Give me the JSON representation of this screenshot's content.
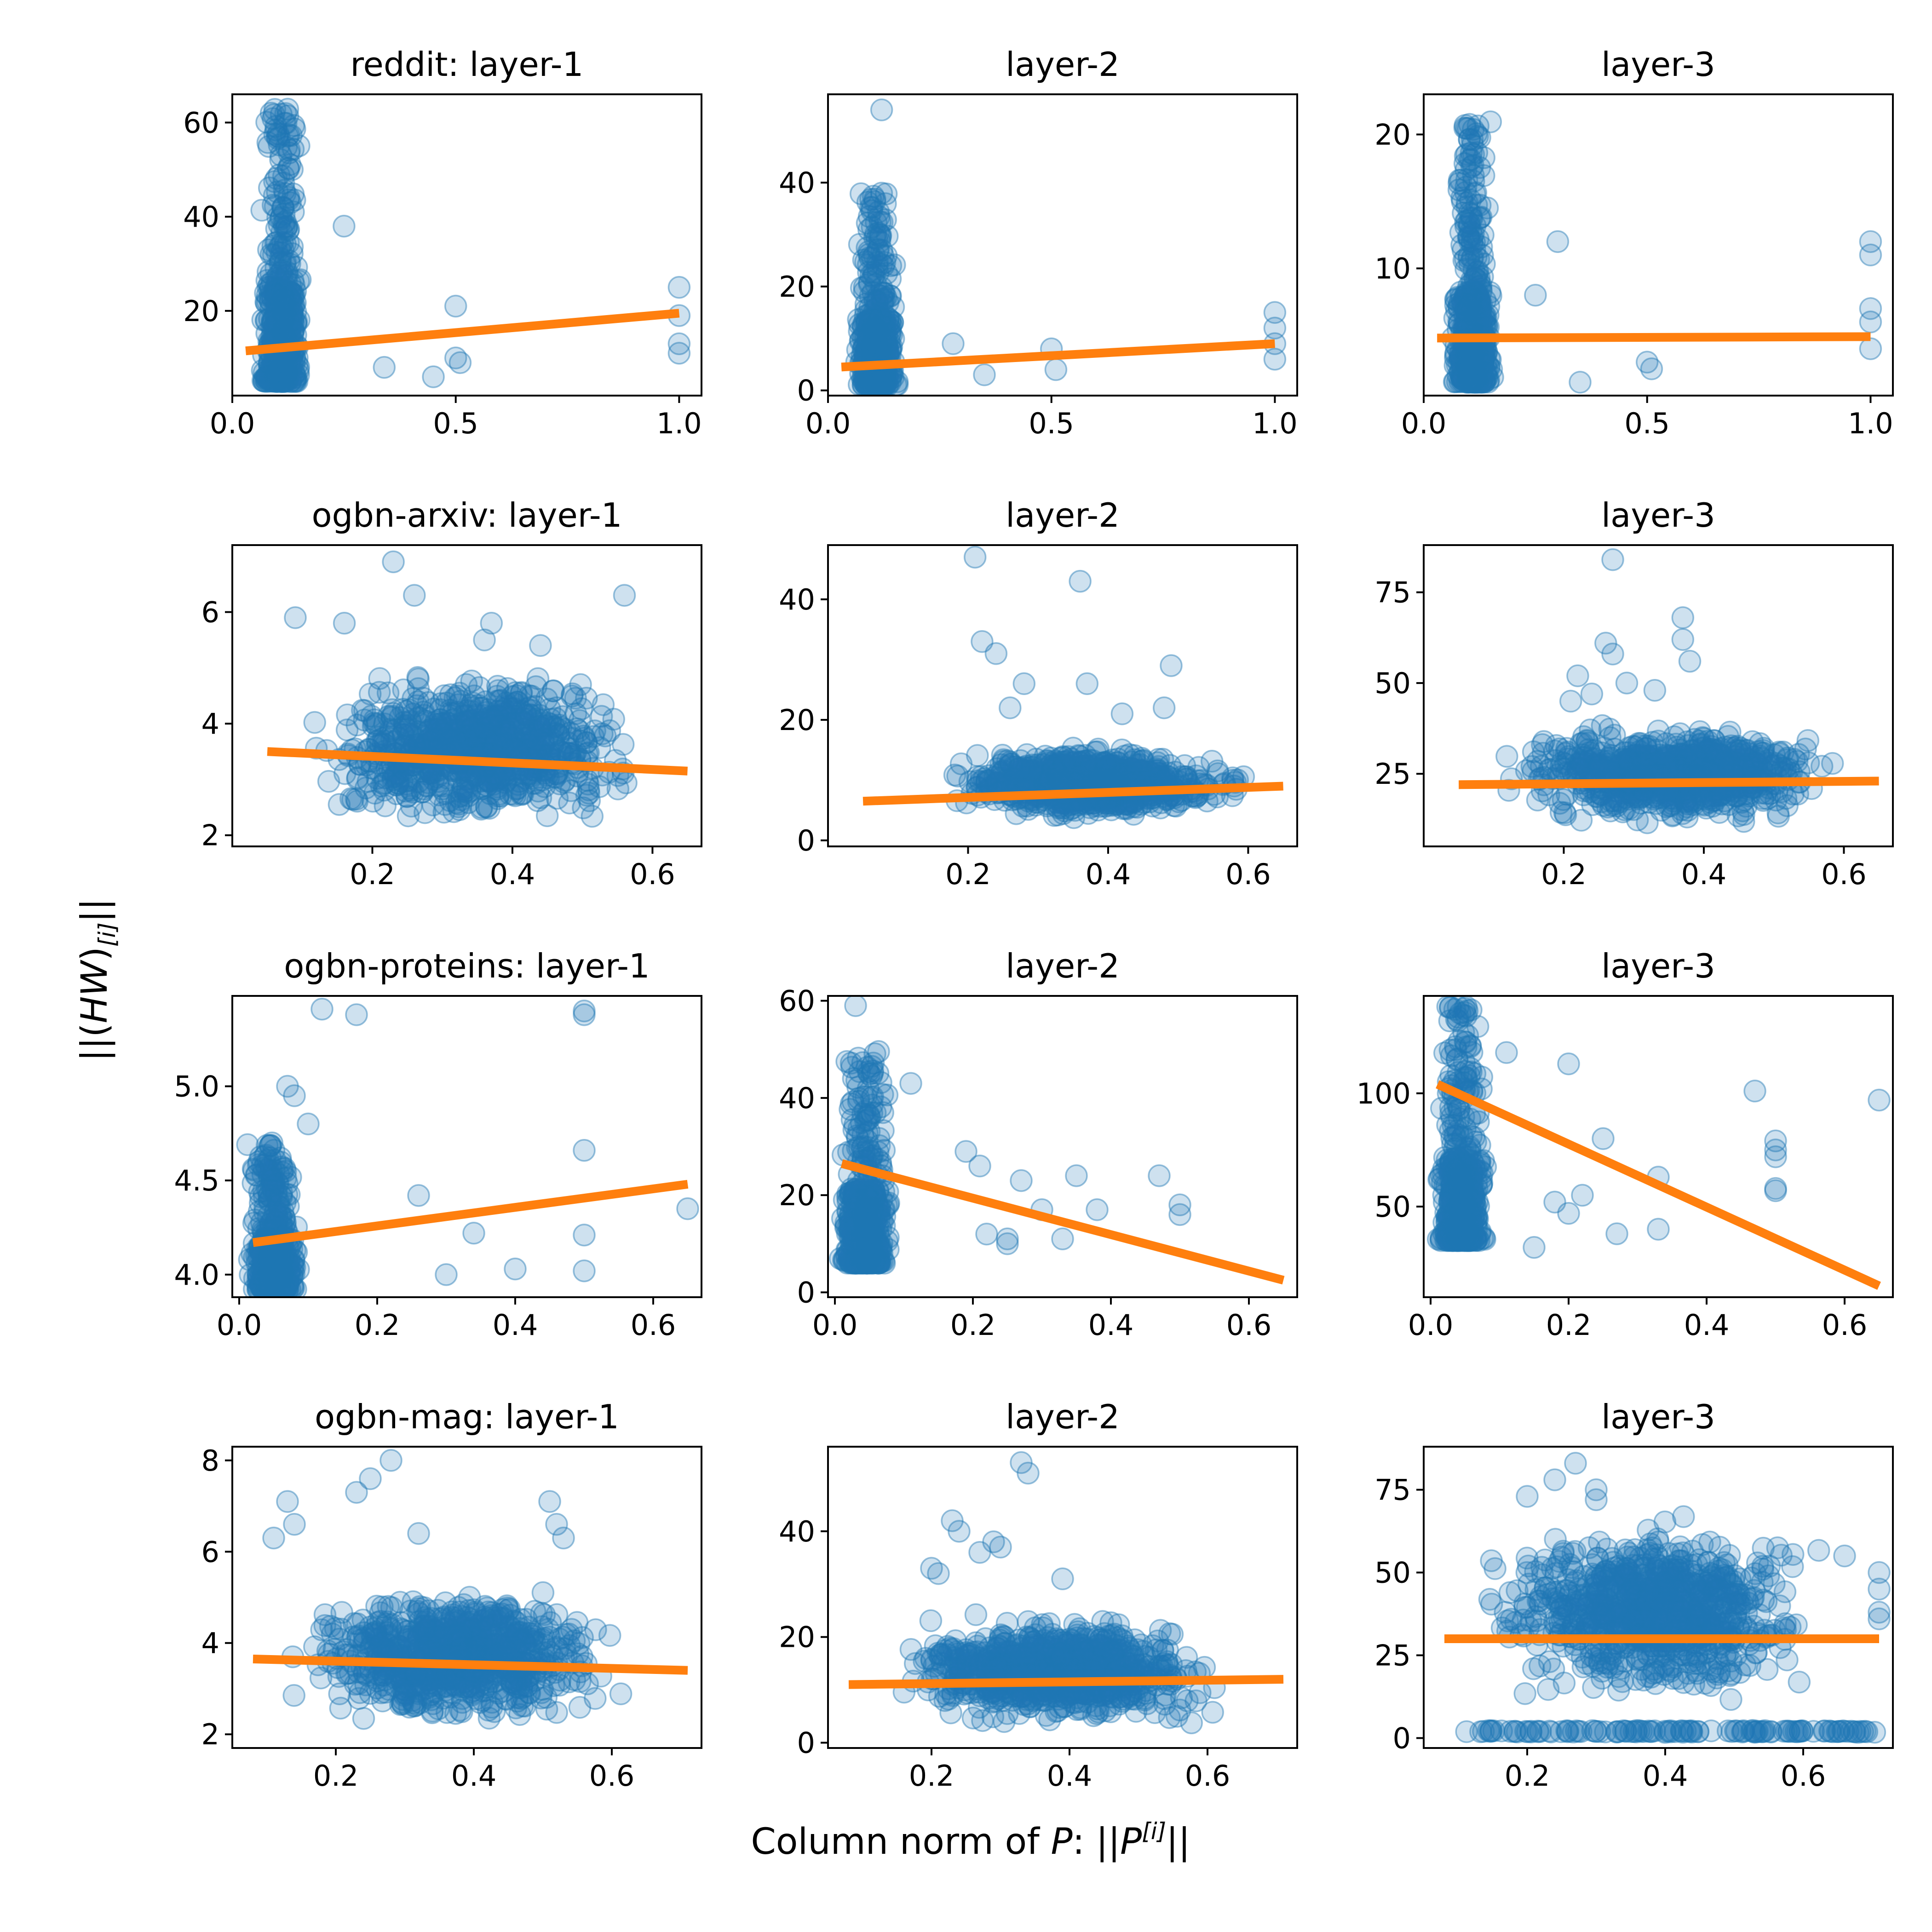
{
  "figure": {
    "x_label_prefix": "Column norm of ",
    "x_label_var": "P",
    "x_label_mid": ": ||",
    "x_label_base": "P",
    "x_label_sup": "[i]",
    "x_label_suffix": "||",
    "y_label_prefix": "||(",
    "y_label_var": "HW",
    "y_label_mid": ")",
    "y_label_sub": "[i]",
    "y_label_suffix": "||",
    "scatter_color": "#1f77b4",
    "line_color": "#ff7f0e"
  },
  "chart_data": [
    {
      "type": "scatter",
      "title": "reddit: layer-1",
      "row": 0,
      "col": 0,
      "xlim": [
        0.0,
        1.05
      ],
      "ylim": [
        2,
        66
      ],
      "xticks": [
        0.0,
        0.5,
        1.0
      ],
      "xtick_labels": [
        "0.0",
        "0.5",
        "1.0"
      ],
      "yticks": [
        20,
        40,
        60
      ],
      "ytick_labels": [
        "20",
        "40",
        "60"
      ],
      "cluster": {
        "x_center": 0.11,
        "x_spread": 0.05,
        "y_low": 5,
        "y_high": 63
      },
      "outliers": [
        [
          0.25,
          38
        ],
        [
          0.5,
          21
        ],
        [
          0.5,
          10
        ],
        [
          0.51,
          9
        ],
        [
          1.0,
          25
        ],
        [
          1.0,
          19
        ],
        [
          1.0,
          13
        ],
        [
          1.0,
          11
        ],
        [
          0.34,
          8
        ],
        [
          0.45,
          6
        ]
      ],
      "trend": {
        "x0": 0.03,
        "y0": 11.5,
        "x1": 1.0,
        "y1": 19.5
      }
    },
    {
      "type": "scatter",
      "title": "layer-2",
      "row": 0,
      "col": 1,
      "xlim": [
        0.0,
        1.05
      ],
      "ylim": [
        -1,
        57
      ],
      "xticks": [
        0.0,
        0.5,
        1.0
      ],
      "xtick_labels": [
        "0.0",
        "0.5",
        "1.0"
      ],
      "yticks": [
        0,
        20,
        40
      ],
      "ytick_labels": [
        "0",
        "20",
        "40"
      ],
      "cluster": {
        "x_center": 0.11,
        "x_spread": 0.05,
        "y_low": 1,
        "y_high": 38
      },
      "outliers": [
        [
          0.12,
          54
        ],
        [
          0.5,
          8
        ],
        [
          0.51,
          4
        ],
        [
          1.0,
          15
        ],
        [
          1.0,
          12
        ],
        [
          1.0,
          9
        ],
        [
          1.0,
          6
        ],
        [
          0.35,
          3
        ],
        [
          0.28,
          9
        ]
      ],
      "trend": {
        "x0": 0.03,
        "y0": 4.5,
        "x1": 1.0,
        "y1": 9.0
      }
    },
    {
      "type": "scatter",
      "title": "layer-3",
      "row": 0,
      "col": 2,
      "xlim": [
        0.0,
        1.05
      ],
      "ylim": [
        0.5,
        23
      ],
      "xticks": [
        0.0,
        0.5,
        1.0
      ],
      "xtick_labels": [
        "0.0",
        "0.5",
        "1.0"
      ],
      "yticks": [
        10,
        20
      ],
      "ytick_labels": [
        "10",
        "20"
      ],
      "cluster": {
        "x_center": 0.11,
        "x_spread": 0.05,
        "y_low": 1.5,
        "y_high": 21
      },
      "outliers": [
        [
          0.3,
          12
        ],
        [
          0.5,
          3
        ],
        [
          0.51,
          2.5
        ],
        [
          1.0,
          12
        ],
        [
          1.0,
          11
        ],
        [
          1.0,
          7
        ],
        [
          1.0,
          6
        ],
        [
          1.0,
          4
        ],
        [
          0.35,
          1.5
        ],
        [
          0.25,
          8
        ]
      ],
      "trend": {
        "x0": 0.03,
        "y0": 4.8,
        "x1": 1.0,
        "y1": 4.9
      }
    },
    {
      "type": "scatter",
      "title": "ogbn-arxiv: layer-1",
      "row": 1,
      "col": 0,
      "xlim": [
        0.0,
        0.67
      ],
      "ylim": [
        1.8,
        7.2
      ],
      "xticks": [
        0.2,
        0.4,
        0.6
      ],
      "xtick_labels": [
        "0.2",
        "0.4",
        "0.6"
      ],
      "yticks": [
        2,
        4,
        6
      ],
      "ytick_labels": [
        "2",
        "4",
        "6"
      ],
      "cluster": {
        "x_center": 0.35,
        "x_spread": 0.3,
        "y_low": 2.1,
        "y_high": 5.0
      },
      "outliers": [
        [
          0.23,
          6.9
        ],
        [
          0.26,
          6.3
        ],
        [
          0.56,
          6.3
        ],
        [
          0.09,
          5.9
        ],
        [
          0.37,
          5.8
        ],
        [
          0.16,
          5.8
        ],
        [
          0.44,
          5.4
        ],
        [
          0.36,
          5.5
        ]
      ],
      "trend": {
        "x0": 0.05,
        "y0": 3.5,
        "x1": 0.65,
        "y1": 3.15
      }
    },
    {
      "type": "scatter",
      "title": "layer-2",
      "row": 1,
      "col": 1,
      "xlim": [
        0.0,
        0.67
      ],
      "ylim": [
        -1,
        49
      ],
      "xticks": [
        0.2,
        0.4,
        0.6
      ],
      "xtick_labels": [
        "0.2",
        "0.4",
        "0.6"
      ],
      "yticks": [
        0,
        20,
        40
      ],
      "ytick_labels": [
        "0",
        "20",
        "40"
      ],
      "cluster": {
        "x_center": 0.38,
        "x_spread": 0.27,
        "y_low": 3,
        "y_high": 16
      },
      "outliers": [
        [
          0.21,
          47
        ],
        [
          0.36,
          43
        ],
        [
          0.22,
          33
        ],
        [
          0.24,
          31
        ],
        [
          0.28,
          26
        ],
        [
          0.37,
          26
        ],
        [
          0.49,
          29
        ],
        [
          0.26,
          22
        ],
        [
          0.48,
          22
        ],
        [
          0.42,
          21
        ]
      ],
      "trend": {
        "x0": 0.05,
        "y0": 6.5,
        "x1": 0.65,
        "y1": 9.0
      }
    },
    {
      "type": "scatter",
      "title": "layer-3",
      "row": 1,
      "col": 2,
      "xlim": [
        0.0,
        0.67
      ],
      "ylim": [
        5,
        88
      ],
      "xticks": [
        0.2,
        0.4,
        0.6
      ],
      "xtick_labels": [
        "0.2",
        "0.4",
        "0.6"
      ],
      "yticks": [
        25,
        50,
        75
      ],
      "ytick_labels": [
        "25",
        "50",
        "75"
      ],
      "cluster": {
        "x_center": 0.36,
        "x_spread": 0.3,
        "y_low": 10,
        "y_high": 40
      },
      "outliers": [
        [
          0.27,
          84
        ],
        [
          0.37,
          68
        ],
        [
          0.37,
          62
        ],
        [
          0.26,
          61
        ],
        [
          0.27,
          58
        ],
        [
          0.38,
          56
        ],
        [
          0.22,
          52
        ],
        [
          0.29,
          50
        ],
        [
          0.33,
          48
        ],
        [
          0.21,
          45
        ],
        [
          0.24,
          47
        ]
      ],
      "trend": {
        "x0": 0.05,
        "y0": 22,
        "x1": 0.65,
        "y1": 23
      }
    },
    {
      "type": "scatter",
      "title": "ogbn-proteins: layer-1",
      "row": 2,
      "col": 0,
      "xlim": [
        -0.01,
        0.67
      ],
      "ylim": [
        3.88,
        5.48
      ],
      "xticks": [
        0.0,
        0.2,
        0.4,
        0.6
      ],
      "xtick_labels": [
        "0.0",
        "0.2",
        "0.4",
        "0.6"
      ],
      "yticks": [
        4.0,
        4.5,
        5.0
      ],
      "ytick_labels": [
        "4.0",
        "4.5",
        "5.0"
      ],
      "cluster": {
        "x_center": 0.05,
        "x_spread": 0.04,
        "y_low": 3.92,
        "y_high": 4.7
      },
      "outliers": [
        [
          0.12,
          5.41
        ],
        [
          0.17,
          5.38
        ],
        [
          0.5,
          5.4
        ],
        [
          0.5,
          5.38
        ],
        [
          0.07,
          5.0
        ],
        [
          0.08,
          4.95
        ],
        [
          0.1,
          4.8
        ],
        [
          0.5,
          4.66
        ],
        [
          0.65,
          4.35
        ],
        [
          0.4,
          4.03
        ],
        [
          0.34,
          4.22
        ],
        [
          0.5,
          4.21
        ],
        [
          0.26,
          4.42
        ],
        [
          0.3,
          4.0
        ],
        [
          0.5,
          4.02
        ]
      ],
      "trend": {
        "x0": 0.02,
        "y0": 4.17,
        "x1": 0.65,
        "y1": 4.48
      }
    },
    {
      "type": "scatter",
      "title": "layer-2",
      "row": 2,
      "col": 1,
      "xlim": [
        -0.01,
        0.67
      ],
      "ylim": [
        -1,
        61
      ],
      "xticks": [
        0.0,
        0.2,
        0.4,
        0.6
      ],
      "xtick_labels": [
        "0.0",
        "0.2",
        "0.4",
        "0.6"
      ],
      "yticks": [
        0,
        20,
        40,
        60
      ],
      "ytick_labels": [
        "0",
        "20",
        "40",
        "60"
      ],
      "cluster": {
        "x_center": 0.045,
        "x_spread": 0.04,
        "y_low": 6,
        "y_high": 50
      },
      "outliers": [
        [
          0.03,
          59
        ],
        [
          0.11,
          43
        ],
        [
          0.19,
          29
        ],
        [
          0.21,
          26
        ],
        [
          0.25,
          10
        ],
        [
          0.25,
          11
        ],
        [
          0.27,
          23
        ],
        [
          0.33,
          11
        ],
        [
          0.35,
          24
        ],
        [
          0.38,
          17
        ],
        [
          0.47,
          24
        ],
        [
          0.5,
          18
        ],
        [
          0.5,
          16
        ],
        [
          0.22,
          12
        ],
        [
          0.3,
          17
        ]
      ],
      "trend": {
        "x0": 0.01,
        "y0": 26.5,
        "x1": 0.65,
        "y1": 2.5
      }
    },
    {
      "type": "scatter",
      "title": "layer-3",
      "row": 2,
      "col": 2,
      "xlim": [
        -0.01,
        0.67
      ],
      "ylim": [
        10,
        143
      ],
      "xticks": [
        0.0,
        0.2,
        0.4,
        0.6
      ],
      "xtick_labels": [
        "0.0",
        "0.2",
        "0.4",
        "0.6"
      ],
      "yticks": [
        50,
        100
      ],
      "ytick_labels": [
        "50",
        "100"
      ],
      "cluster": {
        "x_center": 0.045,
        "x_spread": 0.04,
        "y_low": 35,
        "y_high": 140
      },
      "outliers": [
        [
          0.11,
          118
        ],
        [
          0.2,
          113
        ],
        [
          0.25,
          80
        ],
        [
          0.47,
          101
        ],
        [
          0.5,
          79
        ],
        [
          0.5,
          75
        ],
        [
          0.5,
          72
        ],
        [
          0.5,
          58
        ],
        [
          0.5,
          57
        ],
        [
          0.33,
          63
        ],
        [
          0.33,
          40
        ],
        [
          0.65,
          97
        ],
        [
          0.22,
          55
        ],
        [
          0.2,
          47
        ],
        [
          0.27,
          38
        ],
        [
          0.15,
          32
        ],
        [
          0.18,
          52
        ]
      ],
      "trend": {
        "x0": 0.01,
        "y0": 104,
        "x1": 0.65,
        "y1": 15
      }
    },
    {
      "type": "scatter",
      "title": "ogbn-mag: layer-1",
      "row": 3,
      "col": 0,
      "xlim": [
        0.05,
        0.73
      ],
      "ylim": [
        1.7,
        8.3
      ],
      "xticks": [
        0.2,
        0.4,
        0.6
      ],
      "xtick_labels": [
        "0.2",
        "0.4",
        "0.6"
      ],
      "yticks": [
        2,
        4,
        6,
        8
      ],
      "ytick_labels": [
        "2",
        "4",
        "6",
        "8"
      ],
      "cluster": {
        "x_center": 0.38,
        "x_spread": 0.3,
        "y_low": 2.1,
        "y_high": 5.3
      },
      "outliers": [
        [
          0.28,
          8.0
        ],
        [
          0.25,
          7.6
        ],
        [
          0.23,
          7.3
        ],
        [
          0.13,
          7.1
        ],
        [
          0.14,
          6.6
        ],
        [
          0.51,
          7.1
        ],
        [
          0.52,
          6.6
        ],
        [
          0.53,
          6.3
        ],
        [
          0.32,
          6.4
        ],
        [
          0.11,
          6.3
        ]
      ],
      "trend": {
        "x0": 0.08,
        "y0": 3.65,
        "x1": 0.71,
        "y1": 3.4
      }
    },
    {
      "type": "scatter",
      "title": "layer-2",
      "row": 3,
      "col": 1,
      "xlim": [
        0.05,
        0.73
      ],
      "ylim": [
        -1,
        56
      ],
      "xticks": [
        0.2,
        0.4,
        0.6
      ],
      "xtick_labels": [
        "0.2",
        "0.4",
        "0.6"
      ],
      "yticks": [
        0,
        20,
        40
      ],
      "ytick_labels": [
        "0",
        "20",
        "40"
      ],
      "cluster": {
        "x_center": 0.38,
        "x_spread": 0.3,
        "y_low": 2,
        "y_high": 25
      },
      "outliers": [
        [
          0.33,
          53
        ],
        [
          0.34,
          51
        ],
        [
          0.23,
          42
        ],
        [
          0.24,
          40
        ],
        [
          0.29,
          38
        ],
        [
          0.3,
          37
        ],
        [
          0.27,
          36
        ],
        [
          0.39,
          31
        ],
        [
          0.2,
          33
        ],
        [
          0.21,
          32
        ]
      ],
      "trend": {
        "x0": 0.08,
        "y0": 11,
        "x1": 0.71,
        "y1": 12
      }
    },
    {
      "type": "scatter",
      "title": "layer-3",
      "row": 3,
      "col": 2,
      "xlim": [
        0.05,
        0.73
      ],
      "ylim": [
        -3,
        88
      ],
      "xticks": [
        0.2,
        0.4,
        0.6
      ],
      "xtick_labels": [
        "0.2",
        "0.4",
        "0.6"
      ],
      "yticks": [
        0,
        25,
        50,
        75
      ],
      "ytick_labels": [
        "0",
        "25",
        "50",
        "75"
      ],
      "cluster": {
        "x_center": 0.38,
        "x_spread": 0.3,
        "y_low": 10,
        "y_high": 68
      },
      "outliers": [
        [
          0.27,
          83
        ],
        [
          0.24,
          78
        ],
        [
          0.3,
          75
        ],
        [
          0.2,
          73
        ],
        [
          0.3,
          72
        ],
        [
          0.66,
          55
        ],
        [
          0.71,
          50
        ],
        [
          0.71,
          45
        ],
        [
          0.71,
          38
        ],
        [
          0.71,
          36
        ]
      ],
      "bottom_band": {
        "y": 2,
        "x_low": 0.1,
        "x_high": 0.71
      },
      "trend": {
        "x0": 0.08,
        "y0": 30,
        "x1": 0.71,
        "y1": 30
      }
    }
  ]
}
